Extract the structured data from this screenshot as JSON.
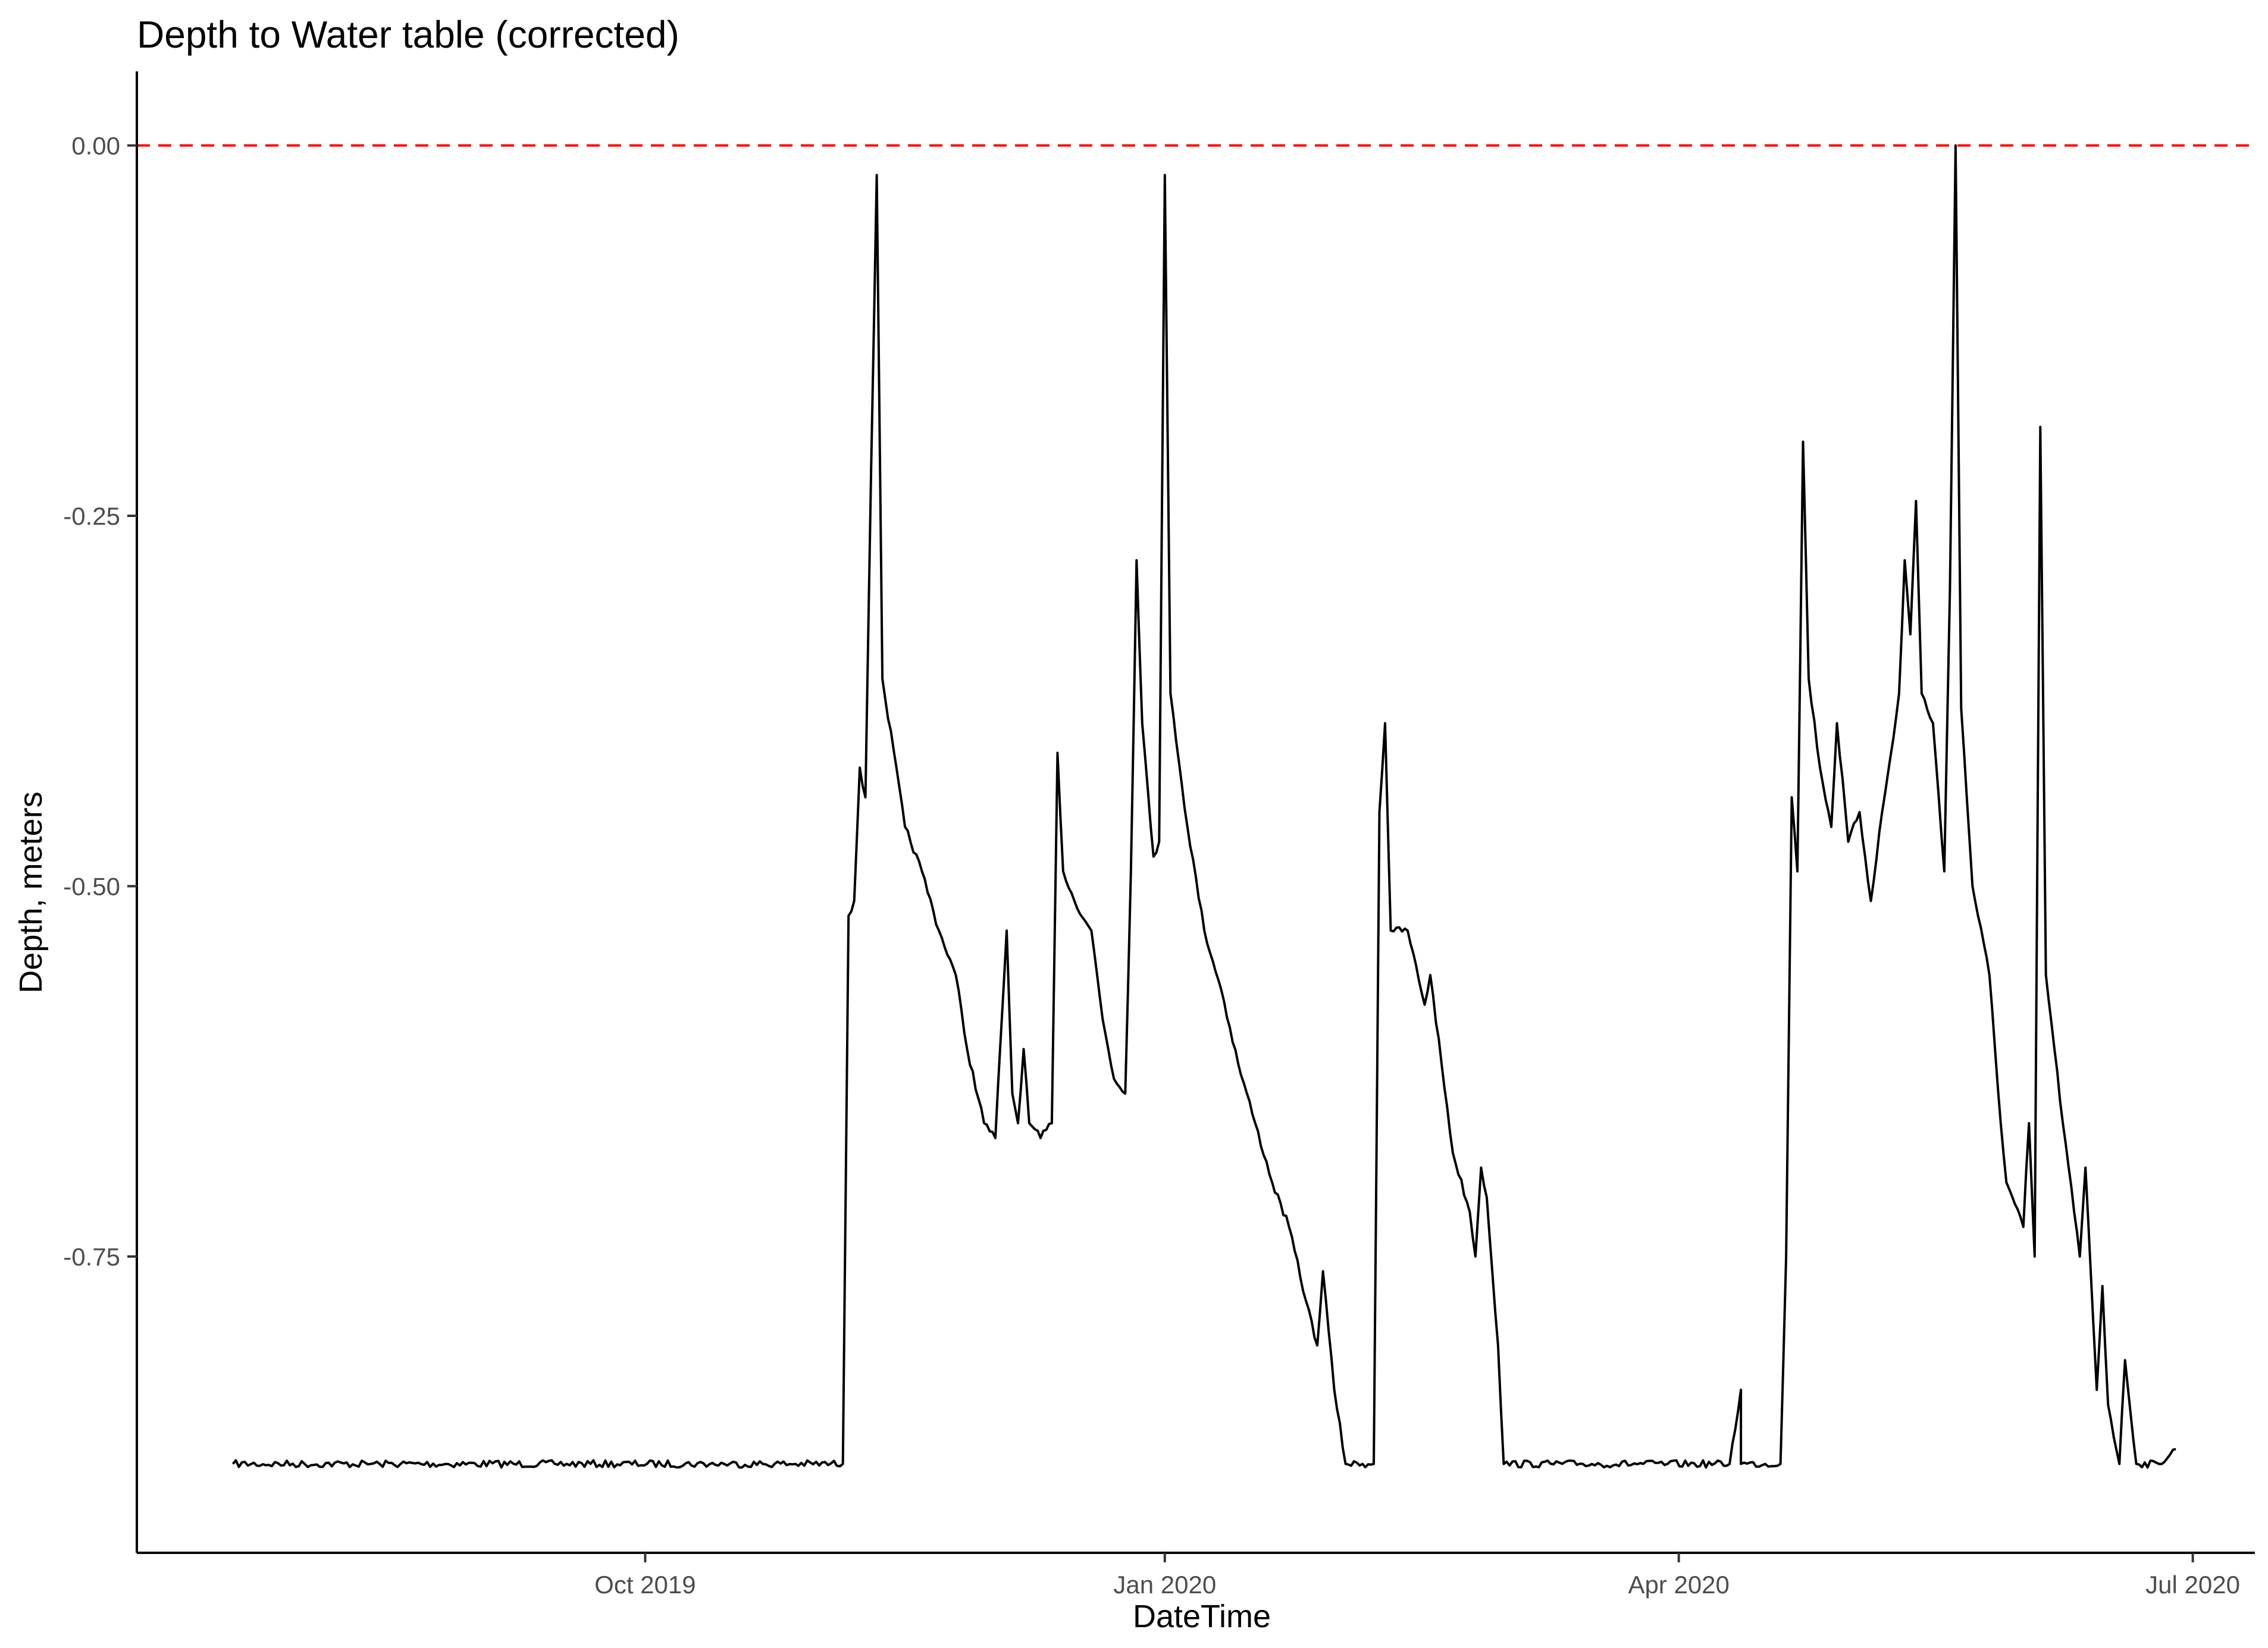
{
  "chart_data": {
    "type": "line",
    "title": "Depth to Water table (corrected)",
    "xlabel": "DateTime",
    "ylabel": "Depth, meters",
    "x_ticks": [
      {
        "label": "Oct 2019",
        "date": "2019-10-01"
      },
      {
        "label": "Jan 2020",
        "date": "2020-01-01"
      },
      {
        "label": "Apr 2020",
        "date": "2020-04-01"
      },
      {
        "label": "Jul 2020",
        "date": "2020-07-01"
      }
    ],
    "y_ticks": [
      {
        "label": "0.00",
        "value": 0
      },
      {
        "label": "-0.25",
        "value": -0.25
      },
      {
        "label": "-0.50",
        "value": -0.5
      },
      {
        "label": "-0.75",
        "value": -0.75
      }
    ],
    "xlim": [
      "2019-07-03",
      "2020-07-12"
    ],
    "ylim": [
      -0.95,
      0.05
    ],
    "grid": false,
    "legend": "none",
    "reference_line": {
      "value": 0,
      "color": "#ff0000",
      "style": "dashed"
    },
    "line_color": "#000000",
    "series": [
      {
        "points": [
          [
            "2019-07-20",
            -0.89
          ],
          [
            "2019-08-15",
            -0.89
          ],
          [
            "2019-09-15",
            -0.89
          ],
          [
            "2019-10-15",
            -0.89
          ],
          [
            "2019-11-05",
            -0.89
          ],
          [
            "2019-11-06",
            -0.52
          ],
          [
            "2019-11-07",
            -0.51
          ],
          [
            "2019-11-08",
            -0.42
          ],
          [
            "2019-11-09",
            -0.44
          ],
          [
            "2019-11-10",
            -0.22
          ],
          [
            "2019-11-11",
            -0.02
          ],
          [
            "2019-11-12",
            -0.36
          ],
          [
            "2019-11-16",
            -0.46
          ],
          [
            "2019-11-19",
            -0.49
          ],
          [
            "2019-11-22",
            -0.53
          ],
          [
            "2019-11-25",
            -0.56
          ],
          [
            "2019-11-27",
            -0.61
          ],
          [
            "2019-11-30",
            -0.66
          ],
          [
            "2019-12-02",
            -0.67
          ],
          [
            "2019-12-04",
            -0.53
          ],
          [
            "2019-12-05",
            -0.64
          ],
          [
            "2019-12-06",
            -0.66
          ],
          [
            "2019-12-07",
            -0.61
          ],
          [
            "2019-12-08",
            -0.66
          ],
          [
            "2019-12-10",
            -0.67
          ],
          [
            "2019-12-12",
            -0.66
          ],
          [
            "2019-12-13",
            -0.41
          ],
          [
            "2019-12-14",
            -0.49
          ],
          [
            "2019-12-16",
            -0.51
          ],
          [
            "2019-12-19",
            -0.53
          ],
          [
            "2019-12-21",
            -0.59
          ],
          [
            "2019-12-23",
            -0.63
          ],
          [
            "2019-12-25",
            -0.64
          ],
          [
            "2019-12-26",
            -0.49
          ],
          [
            "2019-12-27",
            -0.28
          ],
          [
            "2019-12-28",
            -0.39
          ],
          [
            "2019-12-30",
            -0.48
          ],
          [
            "2019-12-31",
            -0.47
          ],
          [
            "2020-01-01",
            -0.02
          ],
          [
            "2020-01-02",
            -0.37
          ],
          [
            "2020-01-05",
            -0.46
          ],
          [
            "2020-01-08",
            -0.53
          ],
          [
            "2020-01-11",
            -0.57
          ],
          [
            "2020-01-14",
            -0.62
          ],
          [
            "2020-01-17",
            -0.66
          ],
          [
            "2020-01-20",
            -0.7
          ],
          [
            "2020-01-23",
            -0.73
          ],
          [
            "2020-01-26",
            -0.78
          ],
          [
            "2020-01-28",
            -0.81
          ],
          [
            "2020-01-29",
            -0.76
          ],
          [
            "2020-01-30",
            -0.8
          ],
          [
            "2020-01-31",
            -0.84
          ],
          [
            "2020-02-02",
            -0.89
          ],
          [
            "2020-02-05",
            -0.89
          ],
          [
            "2020-02-07",
            -0.89
          ],
          [
            "2020-02-08",
            -0.45
          ],
          [
            "2020-02-09",
            -0.39
          ],
          [
            "2020-02-10",
            -0.53
          ],
          [
            "2020-02-13",
            -0.53
          ],
          [
            "2020-02-16",
            -0.58
          ],
          [
            "2020-02-17",
            -0.56
          ],
          [
            "2020-02-19",
            -0.62
          ],
          [
            "2020-02-21",
            -0.68
          ],
          [
            "2020-02-24",
            -0.72
          ],
          [
            "2020-02-25",
            -0.75
          ],
          [
            "2020-02-26",
            -0.69
          ],
          [
            "2020-02-27",
            -0.71
          ],
          [
            "2020-02-29",
            -0.81
          ],
          [
            "2020-03-01",
            -0.89
          ],
          [
            "2020-03-15",
            -0.89
          ],
          [
            "2020-03-30",
            -0.89
          ],
          [
            "2020-04-10",
            -0.89
          ],
          [
            "2020-04-12",
            -0.84
          ],
          [
            "2020-04-12",
            -0.89
          ],
          [
            "2020-04-19",
            -0.89
          ],
          [
            "2020-04-20",
            -0.75
          ],
          [
            "2020-04-21",
            -0.44
          ],
          [
            "2020-04-22",
            -0.49
          ],
          [
            "2020-04-23",
            -0.2
          ],
          [
            "2020-04-24",
            -0.36
          ],
          [
            "2020-04-26",
            -0.42
          ],
          [
            "2020-04-28",
            -0.46
          ],
          [
            "2020-04-29",
            -0.39
          ],
          [
            "2020-05-01",
            -0.47
          ],
          [
            "2020-05-03",
            -0.45
          ],
          [
            "2020-05-05",
            -0.51
          ],
          [
            "2020-05-07",
            -0.45
          ],
          [
            "2020-05-09",
            -0.4
          ],
          [
            "2020-05-10",
            -0.37
          ],
          [
            "2020-05-11",
            -0.28
          ],
          [
            "2020-05-12",
            -0.33
          ],
          [
            "2020-05-13",
            -0.24
          ],
          [
            "2020-05-14",
            -0.37
          ],
          [
            "2020-05-16",
            -0.39
          ],
          [
            "2020-05-18",
            -0.49
          ],
          [
            "2020-05-19",
            -0.3
          ],
          [
            "2020-05-20",
            0.0
          ],
          [
            "2020-05-21",
            -0.38
          ],
          [
            "2020-05-23",
            -0.5
          ],
          [
            "2020-05-26",
            -0.56
          ],
          [
            "2020-05-28",
            -0.66
          ],
          [
            "2020-05-29",
            -0.7
          ],
          [
            "2020-06-01",
            -0.73
          ],
          [
            "2020-06-02",
            -0.66
          ],
          [
            "2020-06-03",
            -0.75
          ],
          [
            "2020-06-04",
            -0.19
          ],
          [
            "2020-06-05",
            -0.56
          ],
          [
            "2020-06-08",
            -0.66
          ],
          [
            "2020-06-10",
            -0.72
          ],
          [
            "2020-06-11",
            -0.75
          ],
          [
            "2020-06-12",
            -0.69
          ],
          [
            "2020-06-14",
            -0.84
          ],
          [
            "2020-06-15",
            -0.77
          ],
          [
            "2020-06-16",
            -0.85
          ],
          [
            "2020-06-18",
            -0.89
          ],
          [
            "2020-06-19",
            -0.82
          ],
          [
            "2020-06-21",
            -0.89
          ],
          [
            "2020-06-25",
            -0.89
          ],
          [
            "2020-06-28",
            -0.88
          ]
        ]
      }
    ]
  }
}
